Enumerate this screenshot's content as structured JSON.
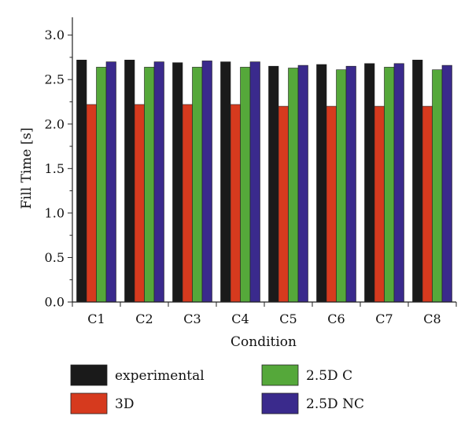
{
  "chart_data": {
    "type": "bar",
    "title": "",
    "xlabel": "Condition",
    "ylabel": "Fill Time [s]",
    "ylim": [
      0,
      3.2
    ],
    "yticks": [
      "0.0",
      "0.5",
      "1.0",
      "1.5",
      "2.0",
      "2.5",
      "3.0"
    ],
    "categories": [
      "C1",
      "C2",
      "C3",
      "C4",
      "C5",
      "C6",
      "C7",
      "C8"
    ],
    "series": [
      {
        "name": "experimental",
        "color": "#1a1a1a",
        "values": [
          2.72,
          2.72,
          2.69,
          2.7,
          2.65,
          2.67,
          2.68,
          2.72
        ]
      },
      {
        "name": "3D",
        "color": "#d63a1e",
        "values": [
          2.22,
          2.22,
          2.22,
          2.22,
          2.2,
          2.2,
          2.2,
          2.2
        ]
      },
      {
        "name": "2.5D C",
        "color": "#55a83a",
        "values": [
          2.64,
          2.64,
          2.64,
          2.64,
          2.63,
          2.61,
          2.64,
          2.61
        ]
      },
      {
        "name": "2.5D NC",
        "color": "#3a2a8c",
        "values": [
          2.7,
          2.7,
          2.71,
          2.7,
          2.66,
          2.65,
          2.68,
          2.66
        ]
      }
    ],
    "grid": false,
    "legend_position": "bottom"
  }
}
